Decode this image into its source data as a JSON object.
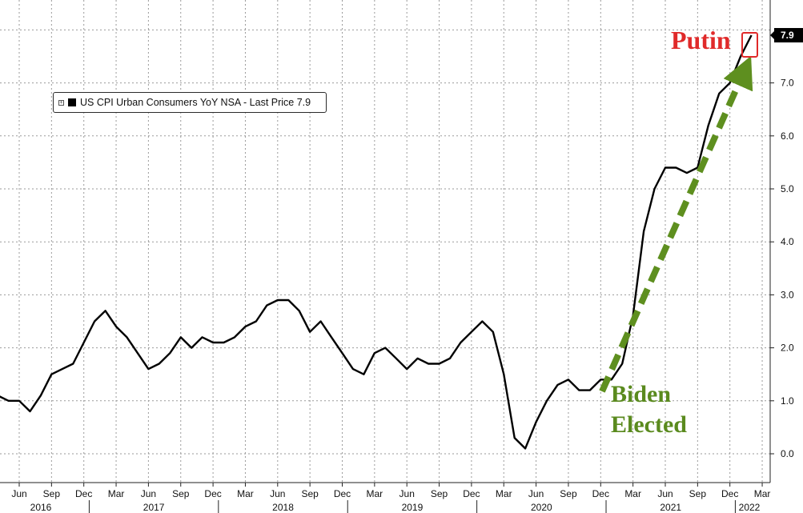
{
  "legend": {
    "label": "US CPI Urban Consumers YoY NSA - Last Price 7.9"
  },
  "colors": {
    "series": "#000000",
    "arrow": "#5e8f1f",
    "putin": "#e02a2a",
    "biden": "#5a8a1e",
    "grid": "#9a9a9a"
  },
  "annotations": {
    "putin": "Putin",
    "biden_line1": "Biden",
    "biden_line2": "Elected",
    "last_value": "7.9"
  },
  "chart_data": {
    "type": "line",
    "title": "",
    "xlabel": "",
    "ylabel": "",
    "ylim": [
      -0.5,
      8.0
    ],
    "y_ticks": [
      "0.0",
      "1.0",
      "2.0",
      "3.0",
      "4.0",
      "5.0",
      "6.0",
      "7.0"
    ],
    "grid": true,
    "legend_position": "top-left",
    "x_tick_labels": [
      "Jun",
      "Sep",
      "Dec",
      "Mar",
      "Jun",
      "Sep",
      "Dec",
      "Mar",
      "Jun",
      "Sep",
      "Dec",
      "Mar",
      "Jun",
      "Sep",
      "Dec",
      "Mar",
      "Jun",
      "Sep",
      "Dec",
      "Mar",
      "Jun",
      "Sep",
      "Dec",
      "Mar"
    ],
    "x_tick_months": [
      "2016-06",
      "2016-09",
      "2016-12",
      "2017-03",
      "2017-06",
      "2017-09",
      "2017-12",
      "2018-03",
      "2018-06",
      "2018-09",
      "2018-12",
      "2019-03",
      "2019-06",
      "2019-09",
      "2019-12",
      "2020-03",
      "2020-06",
      "2020-09",
      "2020-12",
      "2021-03",
      "2021-06",
      "2021-09",
      "2021-12",
      "2022-03"
    ],
    "year_labels": [
      "2016",
      "2017",
      "2018",
      "2019",
      "2020",
      "2021",
      "2022"
    ],
    "series": [
      {
        "name": "US CPI Urban Consumers YoY NSA",
        "x": [
          "2016-02",
          "2016-03",
          "2016-04",
          "2016-05",
          "2016-06",
          "2016-07",
          "2016-08",
          "2016-09",
          "2016-10",
          "2016-11",
          "2016-12",
          "2017-01",
          "2017-02",
          "2017-03",
          "2017-04",
          "2017-05",
          "2017-06",
          "2017-07",
          "2017-08",
          "2017-09",
          "2017-10",
          "2017-11",
          "2017-12",
          "2018-01",
          "2018-02",
          "2018-03",
          "2018-04",
          "2018-05",
          "2018-06",
          "2018-07",
          "2018-08",
          "2018-09",
          "2018-10",
          "2018-11",
          "2018-12",
          "2019-01",
          "2019-02",
          "2019-03",
          "2019-04",
          "2019-05",
          "2019-06",
          "2019-07",
          "2019-08",
          "2019-09",
          "2019-10",
          "2019-11",
          "2019-12",
          "2020-01",
          "2020-02",
          "2020-03",
          "2020-04",
          "2020-05",
          "2020-06",
          "2020-07",
          "2020-08",
          "2020-09",
          "2020-10",
          "2020-11",
          "2020-12",
          "2021-01",
          "2021-02",
          "2021-03",
          "2021-04",
          "2021-05",
          "2021-06",
          "2021-07",
          "2021-08",
          "2021-09",
          "2021-10",
          "2021-11",
          "2021-12",
          "2022-01",
          "2022-02"
        ],
        "values": [
          1.0,
          0.9,
          1.1,
          1.0,
          1.0,
          0.8,
          1.1,
          1.5,
          1.6,
          1.7,
          2.1,
          2.5,
          2.7,
          2.4,
          2.2,
          1.9,
          1.6,
          1.7,
          1.9,
          2.2,
          2.0,
          2.2,
          2.1,
          2.1,
          2.2,
          2.4,
          2.5,
          2.8,
          2.9,
          2.9,
          2.7,
          2.3,
          2.5,
          2.2,
          1.9,
          1.6,
          1.5,
          1.9,
          2.0,
          1.8,
          1.6,
          1.8,
          1.7,
          1.7,
          1.8,
          2.1,
          2.3,
          2.5,
          2.3,
          1.5,
          0.3,
          0.1,
          0.6,
          1.0,
          1.3,
          1.4,
          1.2,
          1.2,
          1.4,
          1.4,
          1.7,
          2.6,
          4.2,
          5.0,
          5.4,
          5.4,
          5.3,
          5.4,
          6.2,
          6.8,
          7.0,
          7.5,
          7.9
        ]
      }
    ]
  }
}
